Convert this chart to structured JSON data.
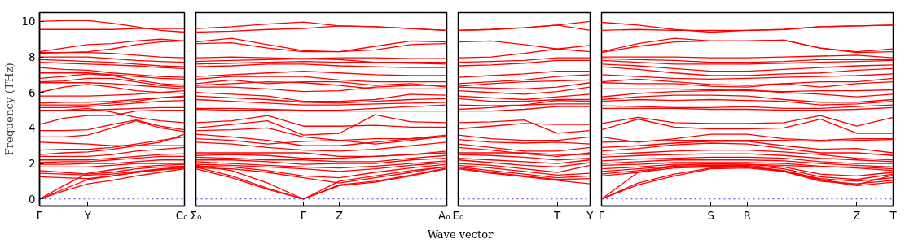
{
  "chart_data": [
    {
      "type": "line",
      "ylabel": "Frequency (THz)",
      "ylim": [
        -0.4,
        10.5
      ],
      "yticks": [
        0,
        2,
        4,
        6,
        8,
        10
      ],
      "grid": false,
      "line_style": "solid",
      "marker": "none",
      "ref_lines": [
        {
          "axis": "y",
          "value": 0,
          "label": null,
          "color": "#0000ff",
          "line_style": "dotted"
        }
      ],
      "categories": [
        "Γ",
        null,
        "Y",
        null,
        null,
        null,
        "C₀"
      ],
      "series": [
        {
          "color": "#ff0000",
          "values": [
            10.0,
            10.05,
            10.05,
            9.9,
            9.7,
            9.5,
            9.4
          ]
        },
        {
          "color": "#ff0000",
          "values": [
            9.55,
            9.55,
            9.55,
            9.55,
            9.6,
            9.6,
            9.6
          ]
        },
        {
          "color": "#ff0000",
          "values": [
            8.3,
            8.5,
            8.7,
            8.75,
            8.9,
            9.0,
            8.9
          ]
        },
        {
          "color": "#ff0000",
          "values": [
            8.2,
            8.25,
            8.3,
            8.45,
            8.7,
            8.85,
            8.9
          ]
        },
        {
          "color": "#ff0000",
          "values": [
            8.25,
            8.25,
            8.25,
            8.2,
            8.1,
            8.0,
            7.95
          ]
        },
        {
          "color": "#ff0000",
          "values": [
            8.0,
            8.0,
            8.0,
            7.9,
            7.8,
            7.75,
            7.7
          ]
        },
        {
          "color": "#ff0000",
          "values": [
            7.85,
            7.8,
            7.75,
            7.7,
            7.6,
            7.5,
            7.45
          ]
        },
        {
          "color": "#ff0000",
          "values": [
            7.7,
            7.65,
            7.6,
            7.55,
            7.5,
            7.4,
            7.35
          ]
        },
        {
          "color": "#ff0000",
          "values": [
            7.4,
            7.3,
            7.25,
            7.1,
            7.0,
            6.9,
            6.85
          ]
        },
        {
          "color": "#ff0000",
          "values": [
            7.1,
            7.1,
            7.1,
            7.0,
            6.9,
            6.8,
            6.75
          ]
        },
        {
          "color": "#ff0000",
          "values": [
            6.8,
            6.9,
            7.05,
            6.95,
            6.7,
            6.5,
            6.4
          ]
        },
        {
          "color": "#ff0000",
          "values": [
            6.6,
            6.65,
            6.8,
            6.8,
            6.6,
            6.4,
            6.3
          ]
        },
        {
          "color": "#ff0000",
          "values": [
            6.55,
            6.55,
            6.55,
            6.5,
            6.4,
            6.3,
            6.2
          ]
        },
        {
          "color": "#ff0000",
          "values": [
            6.0,
            6.3,
            6.45,
            6.3,
            6.1,
            6.0,
            5.95
          ]
        },
        {
          "color": "#ff0000",
          "values": [
            5.8,
            5.8,
            5.8,
            5.85,
            5.9,
            6.0,
            6.1
          ]
        },
        {
          "color": "#ff0000",
          "values": [
            5.4,
            5.45,
            5.45,
            5.5,
            5.6,
            5.7,
            5.8
          ]
        },
        {
          "color": "#ff0000",
          "values": [
            5.3,
            5.3,
            5.3,
            5.4,
            5.5,
            5.7,
            5.75
          ]
        },
        {
          "color": "#ff0000",
          "values": [
            5.15,
            5.15,
            5.2,
            5.3,
            5.4,
            5.5,
            5.55
          ]
        },
        {
          "color": "#ff0000",
          "values": [
            5.0,
            5.0,
            5.0,
            5.05,
            5.1,
            5.15,
            5.15
          ]
        },
        {
          "color": "#ff0000",
          "values": [
            4.95,
            5.0,
            5.1,
            4.9,
            4.6,
            4.4,
            4.3
          ]
        },
        {
          "color": "#ff0000",
          "values": [
            4.2,
            4.55,
            4.7,
            4.7,
            4.95,
            5.0,
            5.0
          ]
        },
        {
          "color": "#ff0000",
          "values": [
            3.85,
            3.85,
            3.9,
            4.2,
            4.45,
            4.1,
            3.9
          ]
        },
        {
          "color": "#ff0000",
          "values": [
            3.5,
            3.5,
            3.6,
            4.0,
            4.4,
            4.0,
            3.8
          ]
        },
        {
          "color": "#ff0000",
          "values": [
            3.2,
            3.15,
            3.1,
            3.0,
            3.0,
            3.0,
            3.0
          ]
        },
        {
          "color": "#ff0000",
          "values": [
            2.75,
            2.8,
            2.8,
            2.9,
            3.1,
            3.3,
            3.5
          ]
        },
        {
          "color": "#ff0000",
          "values": [
            2.5,
            2.6,
            2.65,
            2.8,
            3.0,
            3.2,
            3.65
          ]
        },
        {
          "color": "#ff0000",
          "values": [
            2.4,
            2.4,
            2.4,
            2.5,
            2.7,
            2.8,
            2.9
          ]
        },
        {
          "color": "#ff0000",
          "values": [
            2.2,
            2.2,
            2.2,
            2.3,
            2.4,
            2.5,
            2.55
          ]
        },
        {
          "color": "#ff0000",
          "values": [
            2.05,
            2.1,
            2.1,
            2.2,
            2.3,
            2.4,
            2.4
          ]
        },
        {
          "color": "#ff0000",
          "values": [
            1.95,
            1.95,
            2.0,
            2.0,
            2.1,
            2.2,
            2.2
          ]
        },
        {
          "color": "#ff0000",
          "values": [
            1.8,
            1.8,
            1.8,
            1.9,
            2.0,
            2.0,
            2.0
          ]
        },
        {
          "color": "#ff0000",
          "values": [
            1.6,
            1.5,
            1.4,
            1.5,
            1.7,
            1.8,
            1.85
          ]
        },
        {
          "color": "#ff0000",
          "values": [
            1.45,
            1.4,
            1.35,
            1.4,
            1.55,
            1.7,
            1.8
          ]
        },
        {
          "color": "#ff0000",
          "values": [
            1.25,
            1.2,
            1.15,
            1.3,
            1.5,
            1.65,
            1.75
          ]
        },
        {
          "color": "#ff0000",
          "values": [
            0,
            0.75,
            1.45,
            1.65,
            1.8,
            1.9,
            1.95
          ]
        },
        {
          "color": "#ff0000",
          "values": [
            0,
            0.55,
            1.1,
            1.3,
            1.5,
            1.65,
            1.75
          ]
        },
        {
          "color": "#ff0000",
          "values": [
            0,
            0.45,
            0.85,
            1.05,
            1.3,
            1.5,
            1.7
          ]
        }
      ]
    },
    {
      "type": "line",
      "xlabel": "Wave vector",
      "tick_labels": "x",
      "ylim": [
        -0.4,
        10.5
      ],
      "yticks": [
        0,
        2,
        4,
        6,
        8,
        10
      ],
      "grid": false,
      "line_style": "solid",
      "marker": "none",
      "ref_lines": [
        {
          "axis": "y",
          "value": 0,
          "label": null,
          "color": "#0000ff",
          "line_style": "dotted"
        }
      ],
      "categories": [
        "Σ₀",
        null,
        null,
        "Γ",
        "Z",
        null,
        null,
        "A₀"
      ],
      "series": [
        {
          "color": "#ff0000",
          "values": [
            9.6,
            9.7,
            9.85,
            9.97,
            9.75,
            9.7,
            9.6,
            9.5
          ]
        },
        {
          "color": "#ff0000",
          "values": [
            9.4,
            9.45,
            9.55,
            9.6,
            9.75,
            9.7,
            9.6,
            9.5
          ]
        },
        {
          "color": "#ff0000",
          "values": [
            8.85,
            9.05,
            8.7,
            8.35,
            8.3,
            8.6,
            8.9,
            8.85
          ]
        },
        {
          "color": "#ff0000",
          "values": [
            8.75,
            8.8,
            8.5,
            8.3,
            8.3,
            8.4,
            8.7,
            8.75
          ]
        },
        {
          "color": "#ff0000",
          "values": [
            7.95,
            8.0,
            7.95,
            7.9,
            7.95,
            7.95,
            7.9,
            7.9
          ]
        },
        {
          "color": "#ff0000",
          "values": [
            7.75,
            7.8,
            7.85,
            7.9,
            7.85,
            7.7,
            7.65,
            7.6
          ]
        },
        {
          "color": "#ff0000",
          "values": [
            7.6,
            7.65,
            7.7,
            7.75,
            7.7,
            7.7,
            7.7,
            7.7
          ]
        },
        {
          "color": "#ff0000",
          "values": [
            7.45,
            7.5,
            7.6,
            7.6,
            7.5,
            7.45,
            7.4,
            7.4
          ]
        },
        {
          "color": "#ff0000",
          "values": [
            6.9,
            7.0,
            7.1,
            7.2,
            7.1,
            7.0,
            6.95,
            6.95
          ]
        },
        {
          "color": "#ff0000",
          "values": [
            6.75,
            6.9,
            6.9,
            6.9,
            6.7,
            6.6,
            6.6,
            6.6
          ]
        },
        {
          "color": "#ff0000",
          "values": [
            6.5,
            6.7,
            6.5,
            6.6,
            6.6,
            6.4,
            6.5,
            6.3
          ]
        },
        {
          "color": "#ff0000",
          "values": [
            6.4,
            6.5,
            6.6,
            6.55,
            6.4,
            6.2,
            6.2,
            6.2
          ]
        },
        {
          "color": "#ff0000",
          "values": [
            6.3,
            6.3,
            6.2,
            6.05,
            6.1,
            6.3,
            6.4,
            6.4
          ]
        },
        {
          "color": "#ff0000",
          "values": [
            6.0,
            5.9,
            5.8,
            5.5,
            5.5,
            5.6,
            5.9,
            5.85
          ]
        },
        {
          "color": "#ff0000",
          "values": [
            5.8,
            5.7,
            5.6,
            5.45,
            5.4,
            5.5,
            5.6,
            5.65
          ]
        },
        {
          "color": "#ff0000",
          "values": [
            5.6,
            5.5,
            5.4,
            5.3,
            5.3,
            5.35,
            5.4,
            5.45
          ]
        },
        {
          "color": "#ff0000",
          "values": [
            5.1,
            5.1,
            5.05,
            5.0,
            5.0,
            5.1,
            5.2,
            5.3
          ]
        },
        {
          "color": "#ff0000",
          "values": [
            5.05,
            5.0,
            5.0,
            4.95,
            4.95,
            4.95,
            4.95,
            4.95
          ]
        },
        {
          "color": "#ff0000",
          "values": [
            4.3,
            4.4,
            4.7,
            4.1,
            4.1,
            4.15,
            4.05,
            4.05
          ]
        },
        {
          "color": "#ff0000",
          "values": [
            4.0,
            4.2,
            4.4,
            3.6,
            3.7,
            4.75,
            4.35,
            4.3
          ]
        },
        {
          "color": "#ff0000",
          "values": [
            3.85,
            3.9,
            4.0,
            3.5,
            3.3,
            3.4,
            3.4,
            3.5
          ]
        },
        {
          "color": "#ff0000",
          "values": [
            3.65,
            3.5,
            3.3,
            3.0,
            3.0,
            3.2,
            3.4,
            3.6
          ]
        },
        {
          "color": "#ff0000",
          "values": [
            3.4,
            3.3,
            3.1,
            3.25,
            3.3,
            3.1,
            3.3,
            3.55
          ]
        },
        {
          "color": "#ff0000",
          "values": [
            3.2,
            3.1,
            2.9,
            2.75,
            2.7,
            2.8,
            3.0,
            3.2
          ]
        },
        {
          "color": "#ff0000",
          "values": [
            2.6,
            2.6,
            2.6,
            2.6,
            2.4,
            2.4,
            2.5,
            2.7
          ]
        },
        {
          "color": "#ff0000",
          "values": [
            2.45,
            2.5,
            2.45,
            2.3,
            2.3,
            2.4,
            2.5,
            2.6
          ]
        },
        {
          "color": "#ff0000",
          "values": [
            2.35,
            2.3,
            2.2,
            2.2,
            2.1,
            2.1,
            2.3,
            2.45
          ]
        },
        {
          "color": "#ff0000",
          "values": [
            2.2,
            2.2,
            2.1,
            1.95,
            2.0,
            2.0,
            2.2,
            2.3
          ]
        },
        {
          "color": "#ff0000",
          "values": [
            2.1,
            2.0,
            1.9,
            1.8,
            1.75,
            1.85,
            2.0,
            2.15
          ]
        },
        {
          "color": "#ff0000",
          "values": [
            1.95,
            1.9,
            1.8,
            1.7,
            1.55,
            1.7,
            1.9,
            2.05
          ]
        },
        {
          "color": "#ff0000",
          "values": [
            1.85,
            1.8,
            1.6,
            1.3,
            1.2,
            1.5,
            1.75,
            1.95
          ]
        },
        {
          "color": "#ff0000",
          "values": [
            1.75,
            1.7,
            1.5,
            1.2,
            0.9,
            1.2,
            1.5,
            1.85
          ]
        },
        {
          "color": "#ff0000",
          "values": [
            1.9,
            1.6,
            0.9,
            0,
            1.0,
            1.3,
            1.6,
            1.8
          ]
        },
        {
          "color": "#ff0000",
          "values": [
            1.8,
            1.3,
            0.6,
            0,
            0.8,
            1.0,
            1.35,
            1.75
          ]
        },
        {
          "color": "#ff0000",
          "values": [
            1.7,
            1.2,
            0.55,
            0,
            0.75,
            0.95,
            1.3,
            1.7
          ]
        }
      ]
    },
    {
      "type": "line",
      "tick_labels": "x",
      "ylim": [
        -0.4,
        10.5
      ],
      "yticks": [
        0,
        2,
        4,
        6,
        8,
        10
      ],
      "grid": false,
      "line_style": "solid",
      "marker": "none",
      "ref_lines": [
        {
          "axis": "y",
          "value": 0,
          "label": null,
          "color": "#0000ff",
          "line_style": "dotted"
        }
      ],
      "categories": [
        "E₀",
        null,
        null,
        "T",
        "Y"
      ],
      "series": [
        {
          "color": "#ff0000",
          "values": [
            9.5,
            9.55,
            9.65,
            9.8,
            10.0
          ]
        },
        {
          "color": "#ff0000",
          "values": [
            9.5,
            9.55,
            9.65,
            9.8,
            9.5
          ]
        },
        {
          "color": "#ff0000",
          "values": [
            8.85,
            8.9,
            8.7,
            8.45,
            8.65
          ]
        },
        {
          "color": "#ff0000",
          "values": [
            7.95,
            8.0,
            8.2,
            8.45,
            8.3
          ]
        },
        {
          "color": "#ff0000",
          "values": [
            7.7,
            7.75,
            7.8,
            7.95,
            7.95
          ]
        },
        {
          "color": "#ff0000",
          "values": [
            7.5,
            7.55,
            7.65,
            7.8,
            7.8
          ]
        },
        {
          "color": "#ff0000",
          "values": [
            6.85,
            6.95,
            7.05,
            7.2,
            7.2
          ]
        },
        {
          "color": "#ff0000",
          "values": [
            6.5,
            6.6,
            6.7,
            6.9,
            7.0
          ]
        },
        {
          "color": "#ff0000",
          "values": [
            6.35,
            6.5,
            6.6,
            6.65,
            6.7
          ]
        },
        {
          "color": "#ff0000",
          "values": [
            6.3,
            6.25,
            6.2,
            6.3,
            6.55
          ]
        },
        {
          "color": "#ff0000",
          "values": [
            6.1,
            6.0,
            5.9,
            6.05,
            6.3
          ]
        },
        {
          "color": "#ff0000",
          "values": [
            5.8,
            5.7,
            5.6,
            5.75,
            5.9
          ]
        },
        {
          "color": "#ff0000",
          "values": [
            5.65,
            5.5,
            5.5,
            5.6,
            5.6
          ]
        },
        {
          "color": "#ff0000",
          "values": [
            5.3,
            5.25,
            5.3,
            5.55,
            5.5
          ]
        },
        {
          "color": "#ff0000",
          "values": [
            5.05,
            5.15,
            5.3,
            5.35,
            5.35
          ]
        },
        {
          "color": "#ff0000",
          "values": [
            4.95,
            4.95,
            5.05,
            5.2,
            5.2
          ]
        },
        {
          "color": "#ff0000",
          "values": [
            4.3,
            4.35,
            4.45,
            3.7,
            3.85
          ]
        },
        {
          "color": "#ff0000",
          "values": [
            3.95,
            4.1,
            4.25,
            4.2,
            4.2
          ]
        },
        {
          "color": "#ff0000",
          "values": [
            3.6,
            3.4,
            3.3,
            3.3,
            3.5
          ]
        },
        {
          "color": "#ff0000",
          "values": [
            3.35,
            3.2,
            3.15,
            3.2,
            3.1
          ]
        },
        {
          "color": "#ff0000",
          "values": [
            3.1,
            2.9,
            2.7,
            2.7,
            2.9
          ]
        },
        {
          "color": "#ff0000",
          "values": [
            2.9,
            2.75,
            2.55,
            2.4,
            2.6
          ]
        },
        {
          "color": "#ff0000",
          "values": [
            2.6,
            2.6,
            2.6,
            2.5,
            2.5
          ]
        },
        {
          "color": "#ff0000",
          "values": [
            2.5,
            2.45,
            2.35,
            2.2,
            2.3
          ]
        },
        {
          "color": "#ff0000",
          "values": [
            2.3,
            2.2,
            2.1,
            2.0,
            2.2
          ]
        },
        {
          "color": "#ff0000",
          "values": [
            2.2,
            2.05,
            1.9,
            1.8,
            2.05
          ]
        },
        {
          "color": "#ff0000",
          "values": [
            2.0,
            1.9,
            1.7,
            1.5,
            1.9
          ]
        },
        {
          "color": "#ff0000",
          "values": [
            1.9,
            1.75,
            1.55,
            1.35,
            1.45
          ]
        },
        {
          "color": "#ff0000",
          "values": [
            1.8,
            1.6,
            1.4,
            1.2,
            1.3
          ]
        },
        {
          "color": "#ff0000",
          "values": [
            1.75,
            1.5,
            1.3,
            1.1,
            1.15
          ]
        },
        {
          "color": "#ff0000",
          "values": [
            1.7,
            1.45,
            1.25,
            1.05,
            0.85
          ]
        }
      ]
    },
    {
      "type": "line",
      "tick_labels": "x",
      "ylim": [
        -0.4,
        10.5
      ],
      "yticks": [
        0,
        2,
        4,
        6,
        8,
        10
      ],
      "grid": false,
      "line_style": "solid",
      "marker": "none",
      "ref_lines": [
        {
          "axis": "y",
          "value": 0,
          "label": null,
          "color": "#0000ff",
          "line_style": "dotted"
        }
      ],
      "categories": [
        "Γ",
        null,
        null,
        "S",
        "R",
        null,
        null,
        "Z",
        "T"
      ],
      "series": [
        {
          "color": "#ff0000",
          "values": [
            9.95,
            9.8,
            9.55,
            9.4,
            9.5,
            9.55,
            9.7,
            9.75,
            9.8
          ]
        },
        {
          "color": "#ff0000",
          "values": [
            9.5,
            9.55,
            9.5,
            9.5,
            9.5,
            9.55,
            9.7,
            9.75,
            9.8
          ]
        },
        {
          "color": "#ff0000",
          "values": [
            8.3,
            8.75,
            9.05,
            8.9,
            8.9,
            8.95,
            8.5,
            8.3,
            8.45
          ]
        },
        {
          "color": "#ff0000",
          "values": [
            8.25,
            8.6,
            8.85,
            8.9,
            8.9,
            8.95,
            8.5,
            8.25,
            8.3
          ]
        },
        {
          "color": "#ff0000",
          "values": [
            8.0,
            8.0,
            8.0,
            7.95,
            7.95,
            8.0,
            8.05,
            8.1,
            7.95
          ]
        },
        {
          "color": "#ff0000",
          "values": [
            7.9,
            7.85,
            7.8,
            7.7,
            7.7,
            7.75,
            7.85,
            7.85,
            7.85
          ]
        },
        {
          "color": "#ff0000",
          "values": [
            7.8,
            7.7,
            7.6,
            7.6,
            7.6,
            7.65,
            7.7,
            7.75,
            7.8
          ]
        },
        {
          "color": "#ff0000",
          "values": [
            7.6,
            7.5,
            7.35,
            7.2,
            7.2,
            7.3,
            7.4,
            7.5,
            7.55
          ]
        },
        {
          "color": "#ff0000",
          "values": [
            7.45,
            7.3,
            7.1,
            6.95,
            6.95,
            7.05,
            7.1,
            7.25,
            7.35
          ]
        },
        {
          "color": "#ff0000",
          "values": [
            7.0,
            6.9,
            6.8,
            6.75,
            6.8,
            6.85,
            6.9,
            6.95,
            7.05
          ]
        },
        {
          "color": "#ff0000",
          "values": [
            6.6,
            6.75,
            6.6,
            6.45,
            6.4,
            6.5,
            6.6,
            6.6,
            6.8
          ]
        },
        {
          "color": "#ff0000",
          "values": [
            6.55,
            6.5,
            6.5,
            6.35,
            6.3,
            6.5,
            6.3,
            6.5,
            6.6
          ]
        },
        {
          "color": "#ff0000",
          "values": [
            6.2,
            6.2,
            6.2,
            6.15,
            6.1,
            6.05,
            6.1,
            6.1,
            6.15
          ]
        },
        {
          "color": "#ff0000",
          "values": [
            5.75,
            5.95,
            6.05,
            6.1,
            6.15,
            6.0,
            5.9,
            5.75,
            5.9
          ]
        },
        {
          "color": "#ff0000",
          "values": [
            5.6,
            5.75,
            5.85,
            5.85,
            5.8,
            5.6,
            5.45,
            5.45,
            5.6
          ]
        },
        {
          "color": "#ff0000",
          "values": [
            5.5,
            5.6,
            5.55,
            5.6,
            5.55,
            5.5,
            5.3,
            5.35,
            5.5
          ]
        },
        {
          "color": "#ff0000",
          "values": [
            5.25,
            5.2,
            5.15,
            5.15,
            5.2,
            5.1,
            5.1,
            5.2,
            5.3
          ]
        },
        {
          "color": "#ff0000",
          "values": [
            5.1,
            5.1,
            5.1,
            5.05,
            5.05,
            5.0,
            5.0,
            5.05,
            5.15
          ]
        },
        {
          "color": "#ff0000",
          "values": [
            4.25,
            4.6,
            4.3,
            4.25,
            4.25,
            4.3,
            4.7,
            4.1,
            4.6
          ]
        },
        {
          "color": "#ff0000",
          "values": [
            3.9,
            4.5,
            4.05,
            3.95,
            3.95,
            4.0,
            4.5,
            3.7,
            3.7
          ]
        },
        {
          "color": "#ff0000",
          "values": [
            3.5,
            3.2,
            3.4,
            3.65,
            3.65,
            3.4,
            3.3,
            3.4,
            3.4
          ]
        },
        {
          "color": "#ff0000",
          "values": [
            3.2,
            3.25,
            3.3,
            3.3,
            3.3,
            3.3,
            3.25,
            3.3,
            3.35
          ]
        },
        {
          "color": "#ff0000",
          "values": [
            2.9,
            3.0,
            3.15,
            3.25,
            3.25,
            3.0,
            2.8,
            2.85,
            2.6
          ]
        },
        {
          "color": "#ff0000",
          "values": [
            2.7,
            2.85,
            3.05,
            3.15,
            3.1,
            2.85,
            2.6,
            2.6,
            2.45
          ]
        },
        {
          "color": "#ff0000",
          "values": [
            2.5,
            2.6,
            2.7,
            2.75,
            2.75,
            2.65,
            2.5,
            2.3,
            2.2
          ]
        },
        {
          "color": "#ff0000",
          "values": [
            2.35,
            2.45,
            2.5,
            2.55,
            2.55,
            2.45,
            2.3,
            2.2,
            2.1
          ]
        },
        {
          "color": "#ff0000",
          "values": [
            2.15,
            2.25,
            2.3,
            2.35,
            2.35,
            2.3,
            2.1,
            2.0,
            2.0
          ]
        },
        {
          "color": "#ff0000",
          "values": [
            2.0,
            2.1,
            2.2,
            2.2,
            2.2,
            2.15,
            2.0,
            1.9,
            1.8
          ]
        },
        {
          "color": "#ff0000",
          "values": [
            1.9,
            1.95,
            2.05,
            2.05,
            2.05,
            2.0,
            1.85,
            1.75,
            1.6
          ]
        },
        {
          "color": "#ff0000",
          "values": [
            1.7,
            1.8,
            1.95,
            1.95,
            1.95,
            1.8,
            1.4,
            1.3,
            1.5
          ]
        },
        {
          "color": "#ff0000",
          "values": [
            1.55,
            1.7,
            1.85,
            1.9,
            1.9,
            1.7,
            1.25,
            1.1,
            1.4
          ]
        },
        {
          "color": "#ff0000",
          "values": [
            1.4,
            1.6,
            1.8,
            1.85,
            1.85,
            1.6,
            1.15,
            1.0,
            1.2
          ]
        },
        {
          "color": "#ff0000",
          "values": [
            1.3,
            1.5,
            1.75,
            1.8,
            1.8,
            1.55,
            1.0,
            0.85,
            1.05
          ]
        },
        {
          "color": "#ff0000",
          "values": [
            0,
            1.5,
            1.9,
            2.0,
            1.95,
            1.9,
            1.8,
            1.8,
            1.7
          ]
        },
        {
          "color": "#ff0000",
          "values": [
            0,
            0.9,
            1.4,
            1.75,
            1.8,
            1.6,
            1.1,
            0.8,
            1.35
          ]
        },
        {
          "color": "#ff0000",
          "values": [
            0,
            0.8,
            1.3,
            1.7,
            1.75,
            1.55,
            1.05,
            0.75,
            0.95
          ]
        }
      ]
    }
  ]
}
